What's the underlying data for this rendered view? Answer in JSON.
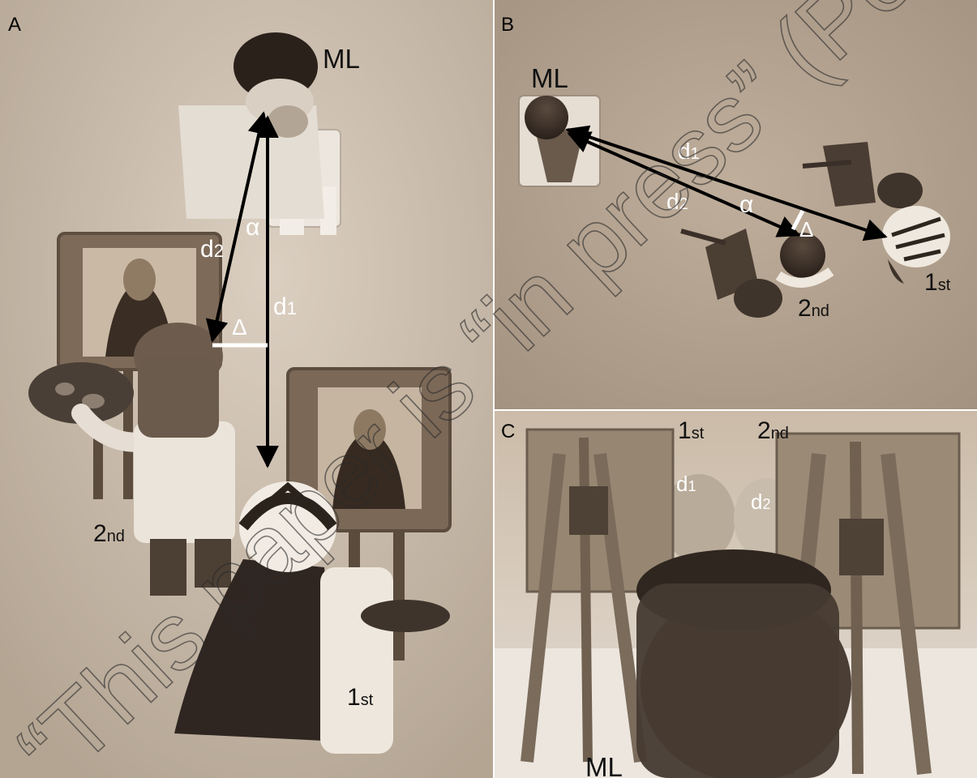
{
  "panels": {
    "a": {
      "letter": "A",
      "ml": "ML",
      "d1": "d",
      "d1_sub": "1",
      "d2": "d",
      "d2_sub": "2",
      "alpha": "α",
      "delta": "Δ",
      "second": "2",
      "second_sub": "nd",
      "first": "1",
      "first_sub": "st"
    },
    "b": {
      "letter": "B",
      "ml": "ML",
      "d1": "d",
      "d1_sub": "1",
      "d2": "d",
      "d2_sub": "2",
      "alpha": "α",
      "delta": "Δ",
      "second": "2",
      "second_sub": "nd",
      "first": "1",
      "first_sub": "st"
    },
    "c": {
      "letter": "C",
      "first": "1",
      "first_sub": "st",
      "second": "2",
      "second_sub": "nd",
      "d1": "d",
      "d1_sub": "1",
      "d2": "d",
      "d2_sub": "2",
      "ml": "ML"
    }
  },
  "watermark": "“This paper is “in press” (Perception)",
  "colors": {
    "sepia_light": "#d8ccbe",
    "sepia_mid": "#a89682",
    "sepia_dark": "#3e342b",
    "arrow": "#000000",
    "delta_bar": "#ffffff"
  }
}
